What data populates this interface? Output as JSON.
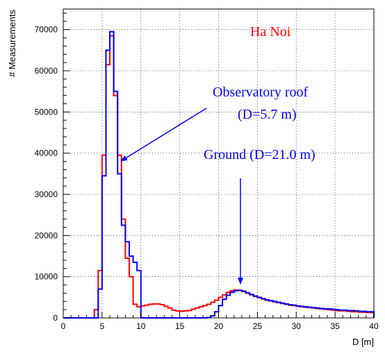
{
  "chart_data": {
    "type": "line",
    "title": "",
    "xlabel": "D [m]",
    "ylabel": "# Measurements",
    "xlim": [
      0,
      40
    ],
    "ylim": [
      0,
      75000
    ],
    "grid": true,
    "x_ticks": [
      "0",
      "5",
      "10",
      "15",
      "20",
      "25",
      "30",
      "35",
      "40"
    ],
    "y_ticks": [
      "0",
      "10000",
      "20000",
      "30000",
      "40000",
      "50000",
      "60000",
      "70000"
    ],
    "bin_width": 0.5,
    "bin_start": 0,
    "series": [
      {
        "name": "",
        "color": "#ff0000",
        "values": [
          0,
          0,
          0,
          0,
          0,
          0,
          0,
          0,
          2000,
          11500,
          39500,
          61500,
          68500,
          54000,
          39500,
          24000,
          14500,
          10000,
          3300,
          2700,
          2900,
          3100,
          3300,
          3400,
          3400,
          3200,
          2800,
          2400,
          1900,
          1700,
          1600,
          1700,
          1800,
          2100,
          2400,
          2700,
          3000,
          3300,
          3800,
          4300,
          5000,
          5600,
          6200,
          6600,
          6800,
          6700,
          6400,
          6000,
          5600,
          5200,
          4900,
          4600,
          4300,
          4100,
          3900,
          3700,
          3500,
          3300,
          3100,
          3000,
          2800,
          2700,
          2600,
          2500,
          2400,
          2300,
          2200,
          2100,
          2000,
          1900,
          1800,
          1700,
          1700,
          1600,
          1500,
          1500,
          1400,
          1400,
          1300,
          1300
        ]
      },
      {
        "name": "",
        "color": "#0000ff",
        "values": [
          0,
          0,
          0,
          0,
          0,
          0,
          0,
          0,
          0,
          7000,
          34500,
          65000,
          69500,
          55000,
          35000,
          22500,
          18500,
          15000,
          13500,
          11500,
          0,
          0,
          0,
          0,
          0,
          0,
          0,
          0,
          0,
          0,
          0,
          0,
          0,
          0,
          0,
          0,
          0,
          100,
          500,
          1500,
          3000,
          4500,
          5500,
          6200,
          6600,
          6700,
          6500,
          6100,
          5700,
          5300,
          5000,
          4700,
          4400,
          4200,
          4000,
          3800,
          3600,
          3400,
          3200,
          3100,
          2900,
          2800,
          2700,
          2600,
          2500,
          2400,
          2300,
          2200,
          2200,
          2100,
          2000,
          1900,
          1900,
          1800,
          1800,
          1700,
          1600,
          1600,
          1500,
          1500
        ]
      }
    ],
    "annotations": {
      "city": "Ha Noi",
      "roof_label": "Observatory roof",
      "roof_value": "(D=5.7 m)",
      "ground_label": "Ground (D=21.0 m)",
      "colors": {
        "city": "#ff0000",
        "labels": "#0000ff"
      }
    }
  }
}
